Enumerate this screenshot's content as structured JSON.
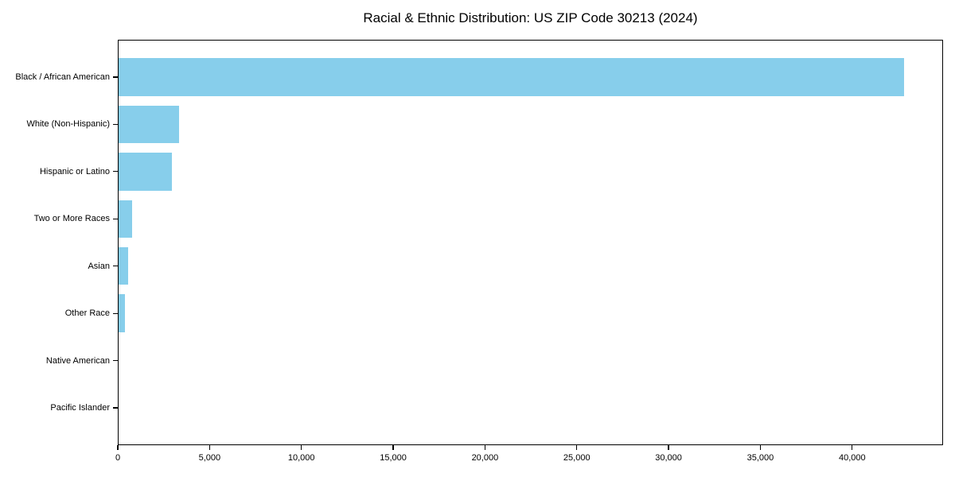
{
  "figure": {
    "background": "#ffffff",
    "text_color": "#000000",
    "axis_color": "#000000"
  },
  "chart_data": {
    "type": "bar",
    "orientation": "horizontal",
    "title": "Racial & Ethnic Distribution: US ZIP Code 30213 (2024)",
    "categories": [
      "Black / African American",
      "White (Non-Hispanic)",
      "Hispanic or Latino",
      "Two or More Races",
      "Asian",
      "Other Race",
      "Native American",
      "Pacific Islander"
    ],
    "values": [
      42800,
      3300,
      2920,
      740,
      510,
      360,
      0,
      0
    ],
    "xlabel": "",
    "ylabel": "",
    "xlim": [
      0,
      44950
    ],
    "xticks": [
      0,
      5000,
      10000,
      15000,
      20000,
      25000,
      30000,
      35000,
      40000
    ],
    "xtick_labels": [
      "0",
      "5,000",
      "10,000",
      "15,000",
      "20,000",
      "25,000",
      "30,000",
      "35,000",
      "40,000"
    ],
    "bar_color": "#87CEEB",
    "bar_height_frac": 0.8,
    "grid": false,
    "legend": null
  }
}
